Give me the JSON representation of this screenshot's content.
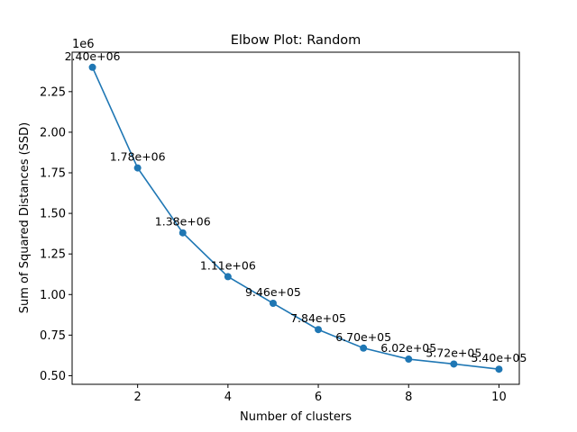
{
  "chart_data": {
    "type": "line",
    "title": "Elbow Plot: Random",
    "xlabel": "Number of clusters",
    "ylabel": "Sum of Squared Distances (SSD)",
    "y_offset_text": "1e6",
    "y_scale": 1000000,
    "x": [
      1,
      2,
      3,
      4,
      5,
      6,
      7,
      8,
      9,
      10
    ],
    "series": [
      {
        "values": [
          2400000,
          1780000,
          1380000,
          1110000,
          946000,
          784000,
          670000,
          602000,
          572000,
          540000
        ],
        "labels": [
          "2.40e+06",
          "1.78e+06",
          "1.38e+06",
          "1.11e+06",
          "9.46e+05",
          "7.84e+05",
          "6.70e+05",
          "6.02e+05",
          "5.72e+05",
          "5.40e+05"
        ]
      }
    ],
    "xlim": [
      0.55,
      10.45
    ],
    "ylim": [
      0.447,
      2.493
    ],
    "xticks": [
      2,
      4,
      6,
      8,
      10
    ],
    "xtick_labels": [
      "2",
      "4",
      "6",
      "8",
      "10"
    ],
    "yticks": [
      0.5,
      0.75,
      1.0,
      1.25,
      1.5,
      1.75,
      2.0,
      2.25
    ],
    "ytick_labels": [
      "0.50",
      "0.75",
      "1.00",
      "1.25",
      "1.50",
      "1.75",
      "2.00",
      "2.25"
    ],
    "grid": false,
    "line_color": "#1f77b4"
  }
}
